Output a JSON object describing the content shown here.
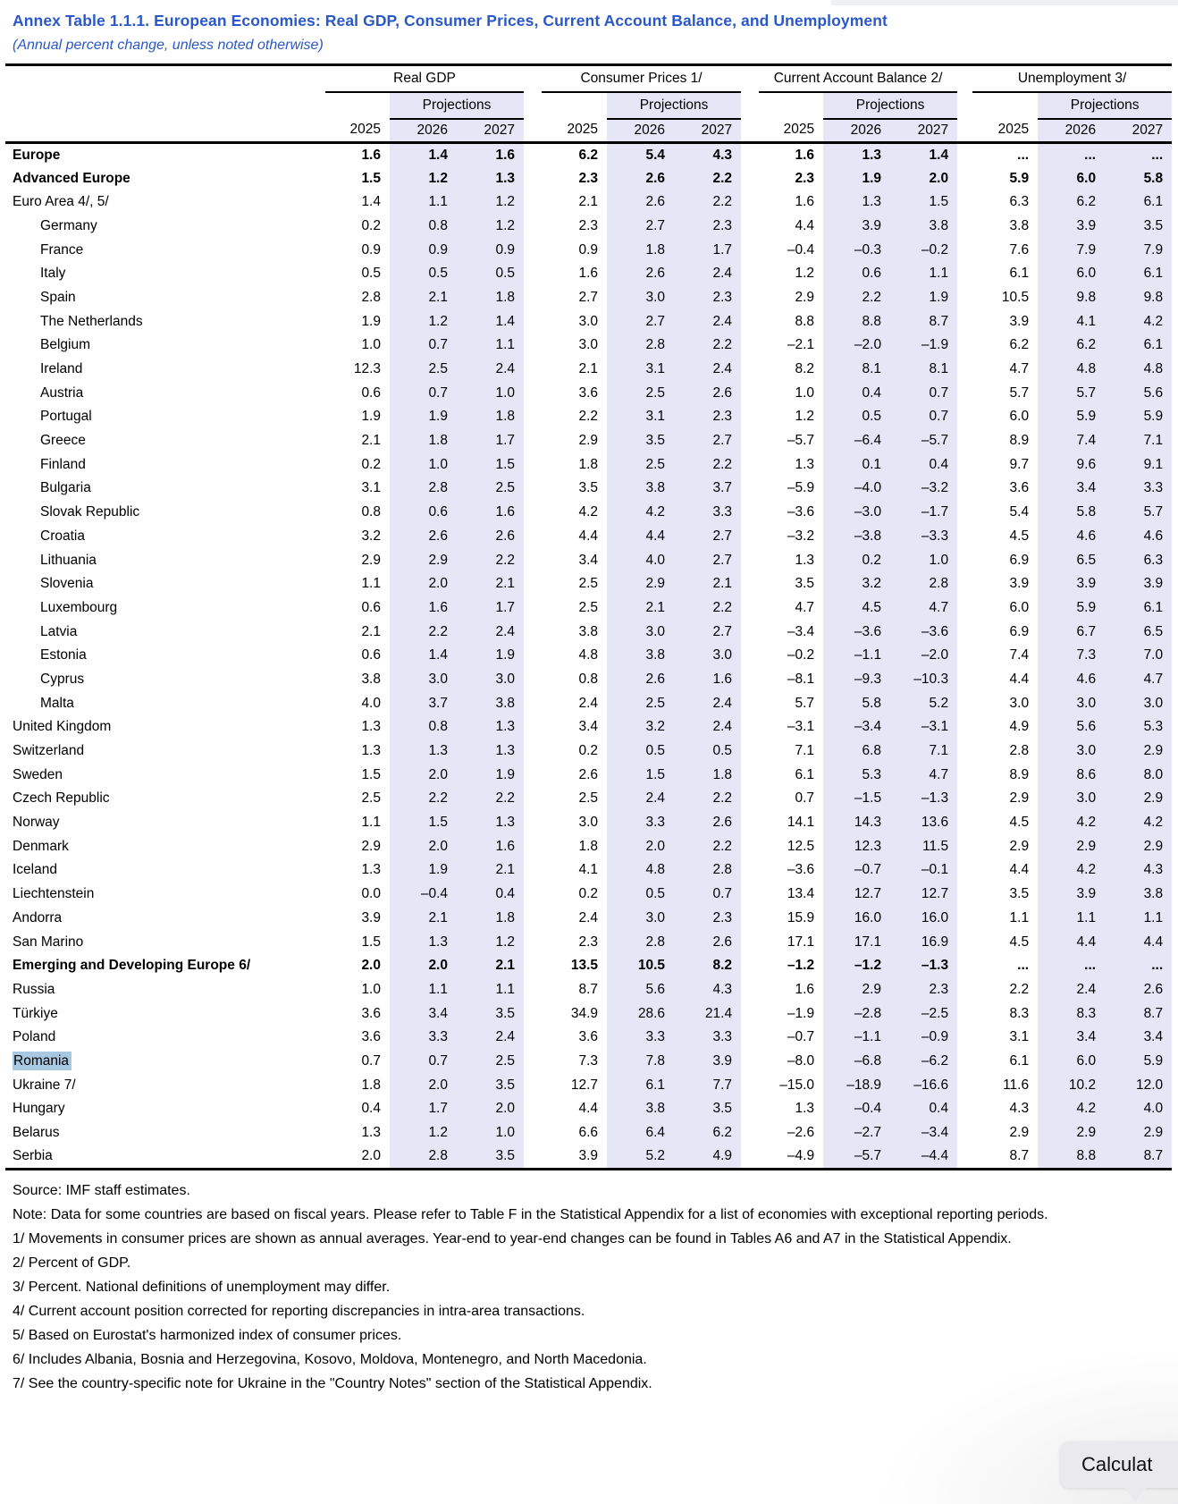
{
  "title": "Annex Table 1.1.1. European Economies: Real GDP, Consumer Prices, Current Account Balance, and Unemployment",
  "subtitle": "(Annual percent change, unless noted otherwise)",
  "colors": {
    "title_blue": "#2a58c8",
    "projection_band": "#e6e6f7",
    "selection_highlight": "#a9c8e1",
    "tooltip_bg": "#eae9eb"
  },
  "table": {
    "groups": [
      {
        "label": "Real GDP"
      },
      {
        "label": "Consumer Prices 1/"
      },
      {
        "label": "Current Account Balance 2/"
      },
      {
        "label": "Unemployment 3/"
      }
    ],
    "projections_label": "Projections",
    "years": [
      "2025",
      "2026",
      "2027"
    ],
    "rows": [
      {
        "name": "Europe",
        "bold": true,
        "indent": 0,
        "values": [
          "1.6",
          "1.4",
          "1.6",
          "6.2",
          "5.4",
          "4.3",
          "1.6",
          "1.3",
          "1.4",
          "...",
          "...",
          "..."
        ]
      },
      {
        "name": "Advanced Europe",
        "bold": true,
        "indent": 0,
        "values": [
          "1.5",
          "1.2",
          "1.3",
          "2.3",
          "2.6",
          "2.2",
          "2.3",
          "1.9",
          "2.0",
          "5.9",
          "6.0",
          "5.8"
        ]
      },
      {
        "name": "Euro Area 4/, 5/",
        "bold": false,
        "indent": 0,
        "values": [
          "1.4",
          "1.1",
          "1.2",
          "2.1",
          "2.6",
          "2.2",
          "1.6",
          "1.3",
          "1.5",
          "6.3",
          "6.2",
          "6.1"
        ]
      },
      {
        "name": "Germany",
        "bold": false,
        "indent": 1,
        "values": [
          "0.2",
          "0.8",
          "1.2",
          "2.3",
          "2.7",
          "2.3",
          "4.4",
          "3.9",
          "3.8",
          "3.8",
          "3.9",
          "3.5"
        ]
      },
      {
        "name": "France",
        "bold": false,
        "indent": 1,
        "values": [
          "0.9",
          "0.9",
          "0.9",
          "0.9",
          "1.8",
          "1.7",
          "–0.4",
          "–0.3",
          "–0.2",
          "7.6",
          "7.9",
          "7.9"
        ]
      },
      {
        "name": "Italy",
        "bold": false,
        "indent": 1,
        "values": [
          "0.5",
          "0.5",
          "0.5",
          "1.6",
          "2.6",
          "2.4",
          "1.2",
          "0.6",
          "1.1",
          "6.1",
          "6.0",
          "6.1"
        ]
      },
      {
        "name": "Spain",
        "bold": false,
        "indent": 1,
        "values": [
          "2.8",
          "2.1",
          "1.8",
          "2.7",
          "3.0",
          "2.3",
          "2.9",
          "2.2",
          "1.9",
          "10.5",
          "9.8",
          "9.8"
        ]
      },
      {
        "name": "The Netherlands",
        "bold": false,
        "indent": 1,
        "values": [
          "1.9",
          "1.2",
          "1.4",
          "3.0",
          "2.7",
          "2.4",
          "8.8",
          "8.8",
          "8.7",
          "3.9",
          "4.1",
          "4.2"
        ]
      },
      {
        "name": "Belgium",
        "bold": false,
        "indent": 1,
        "values": [
          "1.0",
          "0.7",
          "1.1",
          "3.0",
          "2.8",
          "2.2",
          "–2.1",
          "–2.0",
          "–1.9",
          "6.2",
          "6.2",
          "6.1"
        ]
      },
      {
        "name": "Ireland",
        "bold": false,
        "indent": 1,
        "values": [
          "12.3",
          "2.5",
          "2.4",
          "2.1",
          "3.1",
          "2.4",
          "8.2",
          "8.1",
          "8.1",
          "4.7",
          "4.8",
          "4.8"
        ]
      },
      {
        "name": "Austria",
        "bold": false,
        "indent": 1,
        "values": [
          "0.6",
          "0.7",
          "1.0",
          "3.6",
          "2.5",
          "2.6",
          "1.0",
          "0.4",
          "0.7",
          "5.7",
          "5.7",
          "5.6"
        ]
      },
      {
        "name": "Portugal",
        "bold": false,
        "indent": 1,
        "values": [
          "1.9",
          "1.9",
          "1.8",
          "2.2",
          "3.1",
          "2.3",
          "1.2",
          "0.5",
          "0.7",
          "6.0",
          "5.9",
          "5.9"
        ]
      },
      {
        "name": "Greece",
        "bold": false,
        "indent": 1,
        "values": [
          "2.1",
          "1.8",
          "1.7",
          "2.9",
          "3.5",
          "2.7",
          "–5.7",
          "–6.4",
          "–5.7",
          "8.9",
          "7.4",
          "7.1"
        ]
      },
      {
        "name": "Finland",
        "bold": false,
        "indent": 1,
        "values": [
          "0.2",
          "1.0",
          "1.5",
          "1.8",
          "2.5",
          "2.2",
          "1.3",
          "0.1",
          "0.4",
          "9.7",
          "9.6",
          "9.1"
        ]
      },
      {
        "name": "Bulgaria",
        "bold": false,
        "indent": 1,
        "values": [
          "3.1",
          "2.8",
          "2.5",
          "3.5",
          "3.8",
          "3.7",
          "–5.9",
          "–4.0",
          "–3.2",
          "3.6",
          "3.4",
          "3.3"
        ]
      },
      {
        "name": "Slovak Republic",
        "bold": false,
        "indent": 1,
        "values": [
          "0.8",
          "0.6",
          "1.6",
          "4.2",
          "4.2",
          "3.3",
          "–3.6",
          "–3.0",
          "–1.7",
          "5.4",
          "5.8",
          "5.7"
        ]
      },
      {
        "name": "Croatia",
        "bold": false,
        "indent": 1,
        "values": [
          "3.2",
          "2.6",
          "2.6",
          "4.4",
          "4.4",
          "2.7",
          "–3.2",
          "–3.8",
          "–3.3",
          "4.5",
          "4.6",
          "4.6"
        ]
      },
      {
        "name": "Lithuania",
        "bold": false,
        "indent": 1,
        "values": [
          "2.9",
          "2.9",
          "2.2",
          "3.4",
          "4.0",
          "2.7",
          "1.3",
          "0.2",
          "1.0",
          "6.9",
          "6.5",
          "6.3"
        ]
      },
      {
        "name": "Slovenia",
        "bold": false,
        "indent": 1,
        "values": [
          "1.1",
          "2.0",
          "2.1",
          "2.5",
          "2.9",
          "2.1",
          "3.5",
          "3.2",
          "2.8",
          "3.9",
          "3.9",
          "3.9"
        ]
      },
      {
        "name": "Luxembourg",
        "bold": false,
        "indent": 1,
        "values": [
          "0.6",
          "1.6",
          "1.7",
          "2.5",
          "2.1",
          "2.2",
          "4.7",
          "4.5",
          "4.7",
          "6.0",
          "5.9",
          "6.1"
        ]
      },
      {
        "name": "Latvia",
        "bold": false,
        "indent": 1,
        "values": [
          "2.1",
          "2.2",
          "2.4",
          "3.8",
          "3.0",
          "2.7",
          "–3.4",
          "–3.6",
          "–3.6",
          "6.9",
          "6.7",
          "6.5"
        ]
      },
      {
        "name": "Estonia",
        "bold": false,
        "indent": 1,
        "values": [
          "0.6",
          "1.4",
          "1.9",
          "4.8",
          "3.8",
          "3.0",
          "–0.2",
          "–1.1",
          "–2.0",
          "7.4",
          "7.3",
          "7.0"
        ]
      },
      {
        "name": "Cyprus",
        "bold": false,
        "indent": 1,
        "values": [
          "3.8",
          "3.0",
          "3.0",
          "0.8",
          "2.6",
          "1.6",
          "–8.1",
          "–9.3",
          "–10.3",
          "4.4",
          "4.6",
          "4.7"
        ]
      },
      {
        "name": "Malta",
        "bold": false,
        "indent": 1,
        "values": [
          "4.0",
          "3.7",
          "3.8",
          "2.4",
          "2.5",
          "2.4",
          "5.7",
          "5.8",
          "5.2",
          "3.0",
          "3.0",
          "3.0"
        ]
      },
      {
        "name": "United Kingdom",
        "bold": false,
        "indent": 0,
        "values": [
          "1.3",
          "0.8",
          "1.3",
          "3.4",
          "3.2",
          "2.4",
          "–3.1",
          "–3.4",
          "–3.1",
          "4.9",
          "5.6",
          "5.3"
        ]
      },
      {
        "name": "Switzerland",
        "bold": false,
        "indent": 0,
        "values": [
          "1.3",
          "1.3",
          "1.3",
          "0.2",
          "0.5",
          "0.5",
          "7.1",
          "6.8",
          "7.1",
          "2.8",
          "3.0",
          "2.9"
        ]
      },
      {
        "name": "Sweden",
        "bold": false,
        "indent": 0,
        "values": [
          "1.5",
          "2.0",
          "1.9",
          "2.6",
          "1.5",
          "1.8",
          "6.1",
          "5.3",
          "4.7",
          "8.9",
          "8.6",
          "8.0"
        ]
      },
      {
        "name": "Czech Republic",
        "bold": false,
        "indent": 0,
        "values": [
          "2.5",
          "2.2",
          "2.2",
          "2.5",
          "2.4",
          "2.2",
          "0.7",
          "–1.5",
          "–1.3",
          "2.9",
          "3.0",
          "2.9"
        ]
      },
      {
        "name": "Norway",
        "bold": false,
        "indent": 0,
        "values": [
          "1.1",
          "1.5",
          "1.3",
          "3.0",
          "3.3",
          "2.6",
          "14.1",
          "14.3",
          "13.6",
          "4.5",
          "4.2",
          "4.2"
        ]
      },
      {
        "name": "Denmark",
        "bold": false,
        "indent": 0,
        "values": [
          "2.9",
          "2.0",
          "1.6",
          "1.8",
          "2.0",
          "2.2",
          "12.5",
          "12.3",
          "11.5",
          "2.9",
          "2.9",
          "2.9"
        ]
      },
      {
        "name": "Iceland",
        "bold": false,
        "indent": 0,
        "values": [
          "1.3",
          "1.9",
          "2.1",
          "4.1",
          "4.8",
          "2.8",
          "–3.6",
          "–0.7",
          "–0.1",
          "4.4",
          "4.2",
          "4.3"
        ]
      },
      {
        "name": "Liechtenstein",
        "bold": false,
        "indent": 0,
        "values": [
          "0.0",
          "–0.4",
          "0.4",
          "0.2",
          "0.5",
          "0.7",
          "13.4",
          "12.7",
          "12.7",
          "3.5",
          "3.9",
          "3.8"
        ]
      },
      {
        "name": "Andorra",
        "bold": false,
        "indent": 0,
        "values": [
          "3.9",
          "2.1",
          "1.8",
          "2.4",
          "3.0",
          "2.3",
          "15.9",
          "16.0",
          "16.0",
          "1.1",
          "1.1",
          "1.1"
        ]
      },
      {
        "name": "San Marino",
        "bold": false,
        "indent": 0,
        "values": [
          "1.5",
          "1.3",
          "1.2",
          "2.3",
          "2.8",
          "2.6",
          "17.1",
          "17.1",
          "16.9",
          "4.5",
          "4.4",
          "4.4"
        ]
      },
      {
        "name": "Emerging and Developing Europe 6/",
        "bold": true,
        "indent": 0,
        "values": [
          "2.0",
          "2.0",
          "2.1",
          "13.5",
          "10.5",
          "8.2",
          "–1.2",
          "–1.2",
          "–1.3",
          "...",
          "...",
          "..."
        ]
      },
      {
        "name": "Russia",
        "bold": false,
        "indent": 0,
        "values": [
          "1.0",
          "1.1",
          "1.1",
          "8.7",
          "5.6",
          "4.3",
          "1.6",
          "2.9",
          "2.3",
          "2.2",
          "2.4",
          "2.6"
        ]
      },
      {
        "name": "Türkiye",
        "bold": false,
        "indent": 0,
        "values": [
          "3.6",
          "3.4",
          "3.5",
          "34.9",
          "28.6",
          "21.4",
          "–1.9",
          "–2.8",
          "–2.5",
          "8.3",
          "8.3",
          "8.7"
        ]
      },
      {
        "name": "Poland",
        "bold": false,
        "indent": 0,
        "values": [
          "3.6",
          "3.3",
          "2.4",
          "3.6",
          "3.3",
          "3.3",
          "–0.7",
          "–1.1",
          "–0.9",
          "3.1",
          "3.4",
          "3.4"
        ]
      },
      {
        "name": "Romania",
        "bold": false,
        "indent": 0,
        "highlight": true,
        "values": [
          "0.7",
          "0.7",
          "2.5",
          "7.3",
          "7.8",
          "3.9",
          "–8.0",
          "–6.8",
          "–6.2",
          "6.1",
          "6.0",
          "5.9"
        ]
      },
      {
        "name": "Ukraine 7/",
        "bold": false,
        "indent": 0,
        "values": [
          "1.8",
          "2.0",
          "3.5",
          "12.7",
          "6.1",
          "7.7",
          "–15.0",
          "–18.9",
          "–16.6",
          "11.6",
          "10.2",
          "12.0"
        ]
      },
      {
        "name": "Hungary",
        "bold": false,
        "indent": 0,
        "values": [
          "0.4",
          "1.7",
          "2.0",
          "4.4",
          "3.8",
          "3.5",
          "1.3",
          "–0.4",
          "0.4",
          "4.3",
          "4.2",
          "4.0"
        ]
      },
      {
        "name": "Belarus",
        "bold": false,
        "indent": 0,
        "values": [
          "1.3",
          "1.2",
          "1.0",
          "6.6",
          "6.4",
          "6.2",
          "–2.6",
          "–2.7",
          "–3.4",
          "2.9",
          "2.9",
          "2.9"
        ]
      },
      {
        "name": "Serbia",
        "bold": false,
        "indent": 0,
        "values": [
          "2.0",
          "2.8",
          "3.5",
          "3.9",
          "5.2",
          "4.9",
          "–4.9",
          "–5.7",
          "–4.4",
          "8.7",
          "8.8",
          "8.7"
        ]
      }
    ]
  },
  "footnotes": [
    "Source: IMF staff estimates.",
    "Note: Data for some countries are based on fiscal years. Please refer to Table F in the Statistical Appendix for a list of economies with exceptional reporting periods.",
    "1/ Movements in consumer prices are shown as annual averages. Year-end to year-end changes can be found in Tables A6 and A7 in the Statistical Appendix.",
    "2/ Percent of GDP.",
    "3/ Percent. National definitions of unemployment may differ.",
    "4/ Current account position corrected for reporting discrepancies in intra-area transactions.",
    "5/ Based on Eurostat's harmonized index of consumer prices.",
    "6/ Includes Albania, Bosnia and Herzegovina, Kosovo, Moldova, Montenegro, and North Macedonia.",
    "7/ See the country-specific note for Ukraine in the \"Country Notes\" section of the Statistical Appendix."
  ],
  "tooltip": {
    "label": "Calculat"
  }
}
